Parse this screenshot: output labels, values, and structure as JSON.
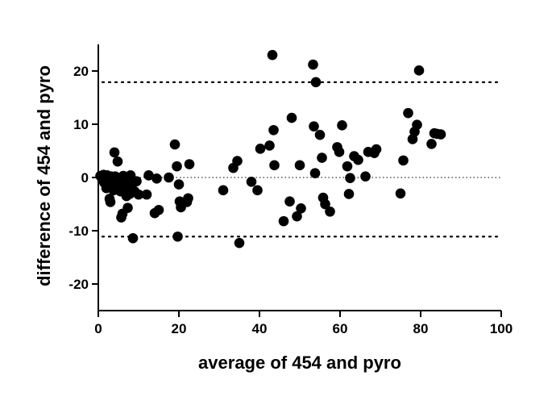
{
  "chart_data": {
    "type": "scatter",
    "title": "",
    "xlabel": "average of 454 and pyro",
    "ylabel": "difference of 454 and pyro",
    "xlim": [
      0,
      100
    ],
    "ylim": [
      -25,
      25
    ],
    "x_ticks": [
      0,
      20,
      40,
      60,
      80,
      100
    ],
    "y_ticks": [
      -20,
      -10,
      0,
      10,
      20
    ],
    "x_tick_labels": [
      "0",
      "20",
      "40",
      "60",
      "80",
      "100"
    ],
    "y_tick_labels": [
      "-20",
      "-10",
      "0",
      "10",
      "20"
    ],
    "reference_lines": [
      {
        "y": 17.9,
        "style": "dotted"
      },
      {
        "y": 0,
        "style": "fine-dotted"
      },
      {
        "y": -11.1,
        "style": "dotted"
      }
    ],
    "grid": false,
    "marker_color": "#000000",
    "points": [
      [
        0.5,
        0.3
      ],
      [
        1.0,
        -0.4
      ],
      [
        1.3,
        0.5
      ],
      [
        1.5,
        -1.0
      ],
      [
        1.8,
        0.2
      ],
      [
        2.0,
        -2.0
      ],
      [
        2.2,
        0.4
      ],
      [
        2.5,
        -0.6
      ],
      [
        2.8,
        -4.0
      ],
      [
        3.0,
        -4.6
      ],
      [
        3.2,
        0.2
      ],
      [
        3.5,
        -1.4
      ],
      [
        3.8,
        -2.4
      ],
      [
        4.0,
        4.7
      ],
      [
        4.2,
        0.2
      ],
      [
        4.5,
        -2.0
      ],
      [
        4.8,
        3.0
      ],
      [
        5.0,
        -1.6
      ],
      [
        5.2,
        -0.4
      ],
      [
        5.5,
        -2.6
      ],
      [
        5.7,
        -7.5
      ],
      [
        6.0,
        -6.8
      ],
      [
        6.2,
        0.3
      ],
      [
        6.5,
        -1.2
      ],
      [
        6.8,
        -2.8
      ],
      [
        7.0,
        -3.5
      ],
      [
        7.3,
        -5.7
      ],
      [
        7.5,
        -0.6
      ],
      [
        7.8,
        -3.1
      ],
      [
        8.0,
        0.4
      ],
      [
        8.3,
        -1.4
      ],
      [
        8.6,
        -11.4
      ],
      [
        9.0,
        -2.6
      ],
      [
        9.5,
        -0.7
      ],
      [
        10.0,
        -3.2
      ],
      [
        12.0,
        -3.2
      ],
      [
        12.5,
        0.4
      ],
      [
        14.0,
        -6.7
      ],
      [
        14.5,
        -0.2
      ],
      [
        15.0,
        -6.1
      ],
      [
        17.5,
        0.0
      ],
      [
        19.0,
        6.2
      ],
      [
        19.5,
        2.1
      ],
      [
        19.7,
        -11.1
      ],
      [
        20.0,
        -1.3
      ],
      [
        20.2,
        -4.5
      ],
      [
        20.5,
        -5.6
      ],
      [
        22.0,
        -4.6
      ],
      [
        22.3,
        -3.9
      ],
      [
        22.6,
        2.5
      ],
      [
        31.0,
        -2.4
      ],
      [
        33.5,
        1.8
      ],
      [
        34.5,
        3.1
      ],
      [
        35.0,
        -12.3
      ],
      [
        38.0,
        -0.8
      ],
      [
        39.5,
        -2.4
      ],
      [
        40.2,
        5.4
      ],
      [
        42.5,
        6.0
      ],
      [
        43.2,
        23.0
      ],
      [
        43.5,
        8.9
      ],
      [
        43.7,
        2.3
      ],
      [
        46.0,
        -8.2
      ],
      [
        47.5,
        -4.5
      ],
      [
        48.0,
        11.2
      ],
      [
        49.3,
        -7.3
      ],
      [
        50.0,
        2.3
      ],
      [
        50.3,
        -5.8
      ],
      [
        53.3,
        21.2
      ],
      [
        53.5,
        9.6
      ],
      [
        53.8,
        0.8
      ],
      [
        54.0,
        17.9
      ],
      [
        55.0,
        8.0
      ],
      [
        55.5,
        3.7
      ],
      [
        55.8,
        -3.8
      ],
      [
        56.3,
        -5.0
      ],
      [
        57.5,
        -6.4
      ],
      [
        59.3,
        5.7
      ],
      [
        59.8,
        4.8
      ],
      [
        60.5,
        9.8
      ],
      [
        61.8,
        2.1
      ],
      [
        62.2,
        -3.1
      ],
      [
        62.5,
        -0.1
      ],
      [
        63.5,
        4.0
      ],
      [
        64.5,
        3.3
      ],
      [
        66.3,
        0.2
      ],
      [
        67.0,
        4.8
      ],
      [
        68.5,
        4.6
      ],
      [
        69.0,
        5.3
      ],
      [
        75.0,
        -3.0
      ],
      [
        75.7,
        3.2
      ],
      [
        76.9,
        12.1
      ],
      [
        78.0,
        7.2
      ],
      [
        78.5,
        8.6
      ],
      [
        79.1,
        9.9
      ],
      [
        79.6,
        20.1
      ],
      [
        82.7,
        6.3
      ],
      [
        83.4,
        8.3
      ],
      [
        84.1,
        8.2
      ],
      [
        85.0,
        8.1
      ]
    ]
  }
}
